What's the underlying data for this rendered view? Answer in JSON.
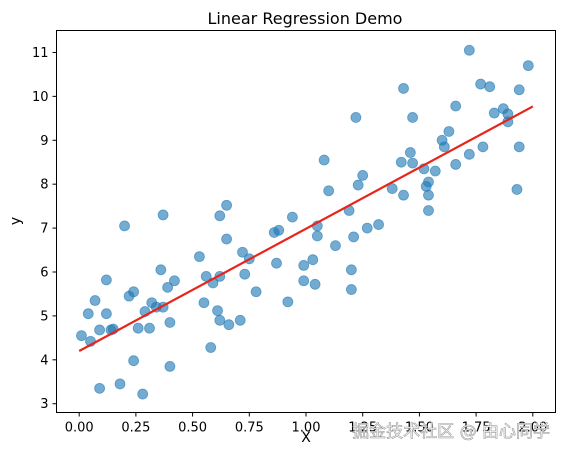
{
  "chart_data": {
    "type": "scatter",
    "title": "Linear Regression Demo",
    "xlabel": "X",
    "ylabel": "y",
    "xlim": [
      -0.1,
      2.1
    ],
    "ylim": [
      2.8,
      11.5
    ],
    "xticks": [
      0.0,
      0.25,
      0.5,
      0.75,
      1.0,
      1.25,
      1.5,
      1.75,
      2.0
    ],
    "xtick_labels": [
      "0.00",
      "0.25",
      "0.50",
      "0.75",
      "1.00",
      "1.25",
      "1.50",
      "1.75",
      "2.00"
    ],
    "yticks": [
      3,
      4,
      5,
      6,
      7,
      8,
      9,
      10,
      11
    ],
    "ytick_labels": [
      "3",
      "4",
      "5",
      "6",
      "7",
      "8",
      "9",
      "10",
      "11"
    ],
    "grid": false,
    "series": [
      {
        "type": "scatter",
        "color": "#1f77b4",
        "points": [
          [
            0.01,
            4.55
          ],
          [
            0.04,
            5.05
          ],
          [
            0.05,
            4.42
          ],
          [
            0.07,
            5.35
          ],
          [
            0.09,
            3.35
          ],
          [
            0.09,
            4.68
          ],
          [
            0.12,
            5.82
          ],
          [
            0.12,
            5.05
          ],
          [
            0.14,
            4.68
          ],
          [
            0.15,
            4.7
          ],
          [
            0.18,
            3.45
          ],
          [
            0.2,
            7.05
          ],
          [
            0.22,
            5.45
          ],
          [
            0.24,
            3.98
          ],
          [
            0.24,
            5.55
          ],
          [
            0.26,
            4.72
          ],
          [
            0.28,
            3.22
          ],
          [
            0.29,
            5.1
          ],
          [
            0.31,
            4.72
          ],
          [
            0.32,
            5.3
          ],
          [
            0.34,
            5.2
          ],
          [
            0.36,
            6.05
          ],
          [
            0.37,
            5.2
          ],
          [
            0.37,
            7.3
          ],
          [
            0.39,
            5.65
          ],
          [
            0.4,
            4.85
          ],
          [
            0.4,
            3.85
          ],
          [
            0.42,
            5.8
          ],
          [
            0.53,
            6.35
          ],
          [
            0.55,
            5.3
          ],
          [
            0.56,
            5.9
          ],
          [
            0.58,
            4.28
          ],
          [
            0.59,
            5.75
          ],
          [
            0.61,
            5.12
          ],
          [
            0.62,
            5.9
          ],
          [
            0.62,
            4.9
          ],
          [
            0.62,
            7.28
          ],
          [
            0.65,
            7.52
          ],
          [
            0.65,
            6.75
          ],
          [
            0.66,
            4.8
          ],
          [
            0.71,
            4.9
          ],
          [
            0.72,
            6.45
          ],
          [
            0.73,
            5.95
          ],
          [
            0.75,
            6.3
          ],
          [
            0.78,
            5.55
          ],
          [
            0.86,
            6.9
          ],
          [
            0.87,
            6.2
          ],
          [
            0.88,
            6.95
          ],
          [
            0.92,
            5.32
          ],
          [
            0.94,
            7.25
          ],
          [
            0.99,
            6.15
          ],
          [
            0.99,
            5.8
          ],
          [
            1.03,
            6.28
          ],
          [
            1.04,
            5.72
          ],
          [
            1.05,
            7.05
          ],
          [
            1.05,
            6.82
          ],
          [
            1.08,
            8.55
          ],
          [
            1.1,
            7.85
          ],
          [
            1.13,
            6.6
          ],
          [
            1.19,
            7.4
          ],
          [
            1.2,
            5.6
          ],
          [
            1.2,
            6.05
          ],
          [
            1.21,
            6.8
          ],
          [
            1.22,
            9.52
          ],
          [
            1.23,
            7.98
          ],
          [
            1.25,
            8.2
          ],
          [
            1.27,
            7.0
          ],
          [
            1.32,
            7.08
          ],
          [
            1.38,
            7.9
          ],
          [
            1.42,
            8.5
          ],
          [
            1.43,
            7.75
          ],
          [
            1.43,
            10.18
          ],
          [
            1.46,
            8.72
          ],
          [
            1.47,
            9.52
          ],
          [
            1.47,
            8.48
          ],
          [
            1.52,
            8.35
          ],
          [
            1.53,
            7.95
          ],
          [
            1.54,
            8.05
          ],
          [
            1.54,
            7.75
          ],
          [
            1.54,
            7.4
          ],
          [
            1.57,
            8.3
          ],
          [
            1.6,
            9.0
          ],
          [
            1.61,
            8.85
          ],
          [
            1.63,
            9.2
          ],
          [
            1.66,
            9.78
          ],
          [
            1.66,
            8.45
          ],
          [
            1.72,
            11.05
          ],
          [
            1.72,
            8.68
          ],
          [
            1.77,
            10.28
          ],
          [
            1.78,
            8.85
          ],
          [
            1.81,
            10.22
          ],
          [
            1.83,
            9.62
          ],
          [
            1.87,
            9.72
          ],
          [
            1.89,
            9.6
          ],
          [
            1.89,
            9.42
          ],
          [
            1.93,
            7.88
          ],
          [
            1.94,
            8.85
          ],
          [
            1.94,
            10.15
          ],
          [
            1.98,
            10.7
          ]
        ]
      },
      {
        "type": "line",
        "color": "#e8251b",
        "points": [
          [
            0.0,
            4.2
          ],
          [
            2.0,
            9.77
          ]
        ]
      }
    ]
  },
  "watermark": {
    "text": "掘金技术社区 @ 由心同学"
  }
}
